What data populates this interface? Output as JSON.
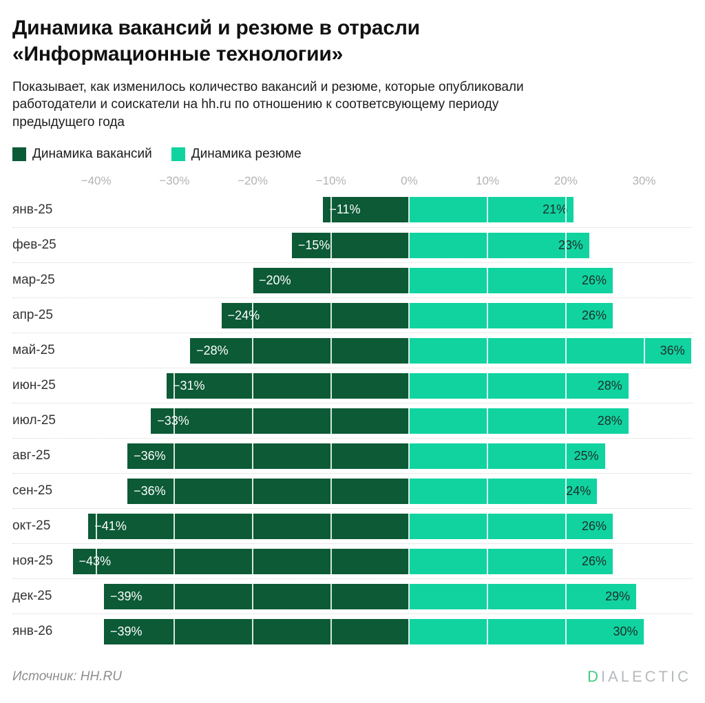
{
  "title": "Динамика вакансий и резюме в отрасли\n«Информационные технологии»",
  "subtitle": "Показывает, как изменилось количество вакансий и резюме, которые опубликовали\nработодатели и соискатели на hh.ru по отношению к соответсвующему периоду\nпредыдущего года",
  "legend": [
    {
      "label": "Динамика вакансий",
      "color": "#0c5a36"
    },
    {
      "label": "Динамика резюме",
      "color": "#10d3a0"
    }
  ],
  "footer": {
    "source": "Источник: HH.RU",
    "logo_d": "D",
    "logo_rest": "IALECTIC"
  },
  "chart_data": {
    "type": "bar",
    "orientation": "horizontal-diverging",
    "title": "Динамика вакансий и резюме в отрасли «Информационные технологии»",
    "xlabel": "",
    "ylabel": "",
    "grid": "white vertical gridlines over bars, dotted row separators",
    "legend_position": "top",
    "categories": [
      "янв-25",
      "фев-25",
      "мар-25",
      "апр-25",
      "май-25",
      "июн-25",
      "июл-25",
      "авг-25",
      "сен-25",
      "окт-25",
      "ноя-25",
      "дек-25",
      "янв-26"
    ],
    "series": [
      {
        "name": "Динамика вакансий",
        "color": "#0c5a36",
        "values": [
          -11,
          -15,
          -20,
          -24,
          -28,
          -31,
          -33,
          -36,
          -36,
          -41,
          -43,
          -39,
          -39
        ],
        "labels": [
          "−11%",
          "−15%",
          "−20%",
          "−24%",
          "−28%",
          "−31%",
          "−33%",
          "−36%",
          "−36%",
          "−41%",
          "−43%",
          "−39%",
          "−39%"
        ]
      },
      {
        "name": "Динамика резюме",
        "color": "#10d3a0",
        "values": [
          21,
          23,
          26,
          26,
          36,
          28,
          28,
          25,
          24,
          26,
          26,
          29,
          30
        ],
        "labels": [
          "21%",
          "23%",
          "26%",
          "26%",
          "36%",
          "28%",
          "28%",
          "25%",
          "24%",
          "26%",
          "26%",
          "29%",
          "30%"
        ]
      }
    ],
    "axis": {
      "ticks": [
        -40,
        -30,
        -20,
        -10,
        0,
        10,
        20,
        30
      ],
      "tick_labels": [
        "−40%",
        "−30%",
        "−20%",
        "−10%",
        "0%",
        "10%",
        "20%",
        "30%"
      ],
      "min": -50.7,
      "max": 36.2
    }
  }
}
